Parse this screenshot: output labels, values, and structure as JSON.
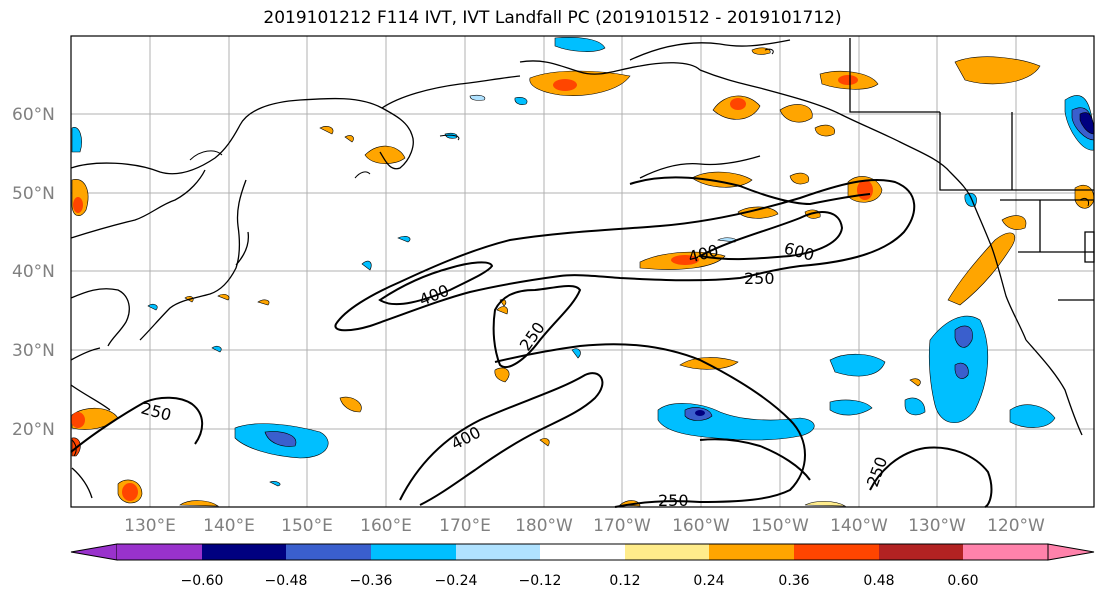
{
  "title": "2019101212 F114 IVT, IVT Landfall PC (2019101512 - 2019101712)",
  "lat_labels": [
    "60°N",
    "50°N",
    "40°N",
    "30°N",
    "20°N"
  ],
  "lon_labels": [
    "130°E",
    "140°E",
    "150°E",
    "160°E",
    "170°E",
    "180°W",
    "170°W",
    "160°W",
    "150°W",
    "140°W",
    "130°W",
    "120°W"
  ],
  "contour_labels": [
    "250",
    "400",
    "600",
    "400",
    "250",
    "400",
    "250",
    "250",
    "250"
  ],
  "colorbar": {
    "ticks": [
      "−0.60",
      "−0.48",
      "−0.36",
      "−0.24",
      "−0.12",
      "0.12",
      "0.24",
      "0.36",
      "0.48",
      "0.60"
    ],
    "colors": {
      "under": "#9932cc",
      "bins": [
        "#000080",
        "#3a5fcd",
        "#00bfff",
        "#b0e2ff",
        "#ffffff",
        "#ffec8b",
        "#ffa500",
        "#ff4500",
        "#b22222"
      ],
      "over": "#ff82ab"
    }
  },
  "colors": {
    "coast": "#000000",
    "grid": "#b0b0b0",
    "label": "#808080"
  }
}
